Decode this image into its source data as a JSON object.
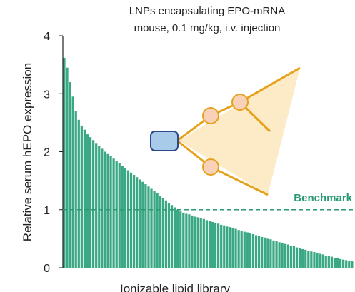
{
  "chart_data": {
    "type": "bar",
    "title": "LNPs encapsulating EPO-mRNA",
    "subtitle": "mouse, 0.1 mg/kg, i.v. injection",
    "y_label": "Relative serum hEPO expression",
    "x_label": "Ionizable lipid library",
    "color": "#3aa884",
    "ylim": [
      0,
      4
    ],
    "yticks": [
      0,
      1,
      2,
      3,
      4
    ],
    "benchmark": {
      "label": "Benchmark",
      "value": 1,
      "color": "#2a9a72"
    },
    "values": [
      3.62,
      3.45,
      3.2,
      2.95,
      2.7,
      2.55,
      2.45,
      2.38,
      2.3,
      2.25,
      2.2,
      2.15,
      2.1,
      2.05,
      2.0,
      1.96,
      1.92,
      1.88,
      1.84,
      1.8,
      1.76,
      1.72,
      1.68,
      1.64,
      1.6,
      1.56,
      1.52,
      1.48,
      1.44,
      1.4,
      1.36,
      1.32,
      1.28,
      1.24,
      1.2,
      1.16,
      1.12,
      1.08,
      1.04,
      1.0,
      0.97,
      0.95,
      0.93,
      0.92,
      0.9,
      0.88,
      0.87,
      0.85,
      0.84,
      0.82,
      0.8,
      0.79,
      0.77,
      0.76,
      0.74,
      0.73,
      0.71,
      0.7,
      0.68,
      0.67,
      0.65,
      0.64,
      0.62,
      0.61,
      0.59,
      0.58,
      0.56,
      0.55,
      0.53,
      0.52,
      0.5,
      0.49,
      0.47,
      0.46,
      0.44,
      0.43,
      0.41,
      0.4,
      0.38,
      0.37,
      0.35,
      0.34,
      0.32,
      0.31,
      0.29,
      0.28,
      0.27,
      0.25,
      0.24,
      0.23,
      0.21,
      0.2,
      0.19,
      0.17,
      0.16,
      0.15,
      0.14,
      0.13,
      0.12,
      0.11
    ]
  }
}
